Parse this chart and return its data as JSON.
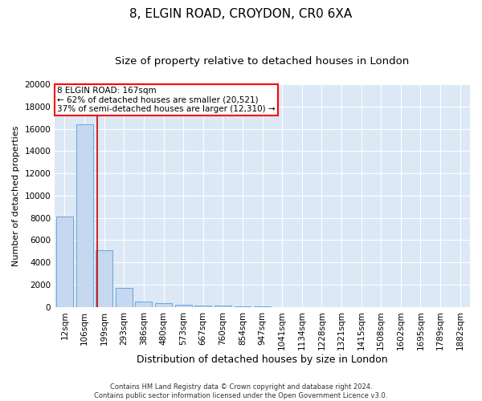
{
  "title1": "8, ELGIN ROAD, CROYDON, CR0 6XA",
  "title2": "Size of property relative to detached houses in London",
  "xlabel": "Distribution of detached houses by size in London",
  "ylabel": "Number of detached properties",
  "categories": [
    "12sqm",
    "106sqm",
    "199sqm",
    "293sqm",
    "386sqm",
    "480sqm",
    "573sqm",
    "667sqm",
    "760sqm",
    "854sqm",
    "947sqm",
    "1041sqm",
    "1134sqm",
    "1228sqm",
    "1321sqm",
    "1415sqm",
    "1508sqm",
    "1602sqm",
    "1695sqm",
    "1789sqm",
    "1882sqm"
  ],
  "values": [
    8100,
    16400,
    5100,
    1750,
    480,
    380,
    230,
    160,
    110,
    60,
    30,
    0,
    0,
    0,
    0,
    0,
    0,
    0,
    0,
    0,
    0
  ],
  "bar_color": "#c5d8f0",
  "bar_edge_color": "#5b9bd5",
  "vline_color": "#cc0000",
  "annotation_text": "8 ELGIN ROAD: 167sqm\n← 62% of detached houses are smaller (20,521)\n37% of semi-detached houses are larger (12,310) →",
  "footer": "Contains HM Land Registry data © Crown copyright and database right 2024.\nContains public sector information licensed under the Open Government Licence v3.0.",
  "ylim": [
    0,
    20000
  ],
  "yticks": [
    0,
    2000,
    4000,
    6000,
    8000,
    10000,
    12000,
    14000,
    16000,
    18000,
    20000
  ],
  "plot_bg": "#dce8f5",
  "title1_fontsize": 11,
  "title2_fontsize": 9.5,
  "xlabel_fontsize": 9,
  "ylabel_fontsize": 8,
  "tick_fontsize": 7.5,
  "footer_fontsize": 6,
  "annotation_fontsize": 7.5
}
